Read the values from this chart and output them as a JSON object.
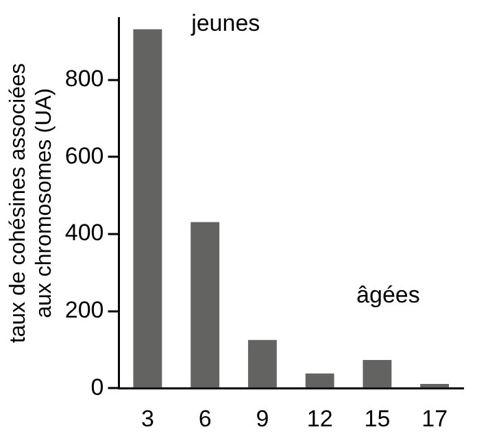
{
  "chart_data": {
    "type": "bar",
    "ylabel": "taux de cohésines associées\naux chromosomes (UA)",
    "categories": [
      "3",
      "6",
      "9",
      "12",
      "15",
      "17"
    ],
    "values": [
      931,
      431,
      125,
      38,
      73,
      11
    ],
    "color": "#636462",
    "ylim": [
      0,
      960
    ],
    "yticks": [
      0,
      200,
      400,
      600,
      800
    ],
    "grid": false,
    "annotations": [
      "jeunes",
      "âgées"
    ]
  }
}
